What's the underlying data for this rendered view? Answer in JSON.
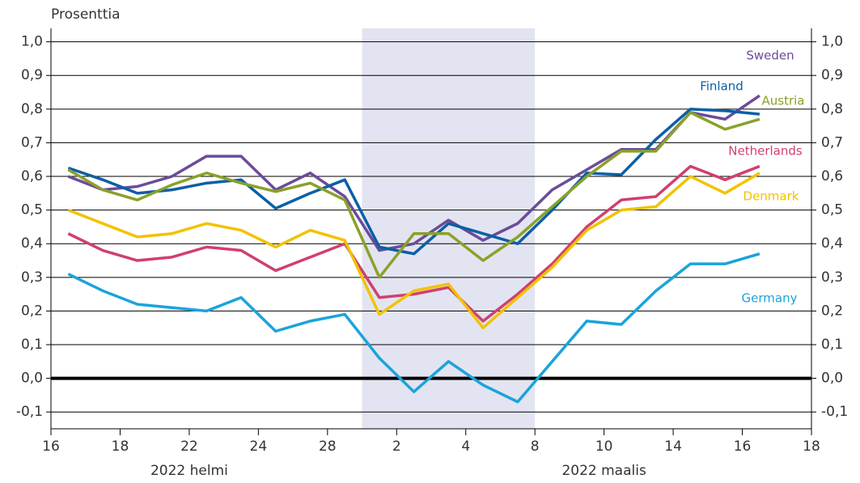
{
  "chart_data": {
    "type": "line",
    "ylabel": "Prosenttia",
    "x": [
      0.5,
      1.5,
      2.5,
      3.5,
      4.5,
      5.5,
      6.5,
      7.5,
      8.5,
      9.5,
      10.5,
      11.5,
      12.5,
      13.5,
      14.5,
      15.5,
      16.5,
      17.5,
      18.5,
      19.5,
      20.5
    ],
    "xlim": [
      0,
      22
    ],
    "xticks": [
      {
        "value": 0,
        "label": "16"
      },
      {
        "value": 2,
        "label": "18"
      },
      {
        "value": 4,
        "label": "22"
      },
      {
        "value": 6,
        "label": "24"
      },
      {
        "value": 8,
        "label": "28"
      },
      {
        "value": 10,
        "label": "2"
      },
      {
        "value": 12,
        "label": "4"
      },
      {
        "value": 14,
        "label": "8"
      },
      {
        "value": 16,
        "label": "10"
      },
      {
        "value": 18,
        "label": "14"
      },
      {
        "value": 20,
        "label": "16"
      },
      {
        "value": 22,
        "label": "18"
      }
    ],
    "xgroups": [
      {
        "value": 4,
        "label": "2022 helmi"
      },
      {
        "value": 16,
        "label": "2022 maalis"
      }
    ],
    "shade": [
      9,
      14
    ],
    "ylim": [
      -0.15,
      1.04
    ],
    "yticks": [
      {
        "value": -0.1,
        "label": "-0,1"
      },
      {
        "value": 0,
        "label": "0,0"
      },
      {
        "value": 0.1,
        "label": "0,1"
      },
      {
        "value": 0.2,
        "label": "0,2"
      },
      {
        "value": 0.3,
        "label": "0,3"
      },
      {
        "value": 0.4,
        "label": "0,4"
      },
      {
        "value": 0.5,
        "label": "0,5"
      },
      {
        "value": 0.6,
        "label": "0,6"
      },
      {
        "value": 0.7,
        "label": "0,7"
      },
      {
        "value": 0.8,
        "label": "0,8"
      },
      {
        "value": 0.9,
        "label": "0,9"
      },
      {
        "value": 1.0,
        "label": "1,0"
      }
    ],
    "grid": true,
    "series": [
      {
        "name": "Sweden",
        "color": "#6b4c9a",
        "values": [
          0.6,
          0.56,
          0.57,
          0.6,
          0.66,
          0.66,
          0.56,
          0.61,
          0.54,
          0.38,
          0.4,
          0.47,
          0.41,
          0.46,
          0.56,
          0.62,
          0.68,
          0.68,
          0.79,
          0.77,
          0.84
        ]
      },
      {
        "name": "Finland",
        "color": "#0b5fa5",
        "values": [
          0.625,
          0.59,
          0.55,
          0.56,
          0.58,
          0.59,
          0.505,
          0.55,
          0.59,
          0.39,
          0.37,
          0.46,
          0.43,
          0.4,
          0.5,
          0.61,
          0.605,
          0.71,
          0.8,
          0.795,
          0.785
        ]
      },
      {
        "name": "Austria",
        "color": "#8aa12a",
        "values": [
          0.62,
          0.56,
          0.53,
          0.575,
          0.61,
          0.58,
          0.555,
          0.58,
          0.53,
          0.3,
          0.43,
          0.43,
          0.35,
          0.42,
          0.51,
          0.6,
          0.675,
          0.675,
          0.79,
          0.74,
          0.77
        ]
      },
      {
        "name": "Netherlands",
        "color": "#d0406e",
        "values": [
          0.43,
          0.38,
          0.35,
          0.36,
          0.39,
          0.38,
          0.32,
          0.36,
          0.4,
          0.24,
          0.25,
          0.27,
          0.17,
          0.25,
          0.34,
          0.45,
          0.53,
          0.54,
          0.63,
          0.59,
          0.63
        ]
      },
      {
        "name": "Denmark",
        "color": "#f2c200",
        "values": [
          0.5,
          0.46,
          0.42,
          0.43,
          0.46,
          0.44,
          0.39,
          0.44,
          0.41,
          0.19,
          0.26,
          0.28,
          0.15,
          0.24,
          0.33,
          0.44,
          0.5,
          0.51,
          0.6,
          0.55,
          0.61
        ]
      },
      {
        "name": "Germany",
        "color": "#1ba3dc",
        "values": [
          0.31,
          0.26,
          0.22,
          0.21,
          0.2,
          0.24,
          0.14,
          0.17,
          0.19,
          0.06,
          -0.04,
          0.05,
          -0.02,
          -0.07,
          0.05,
          0.17,
          0.16,
          0.26,
          0.34,
          0.34,
          0.37
        ]
      }
    ]
  }
}
